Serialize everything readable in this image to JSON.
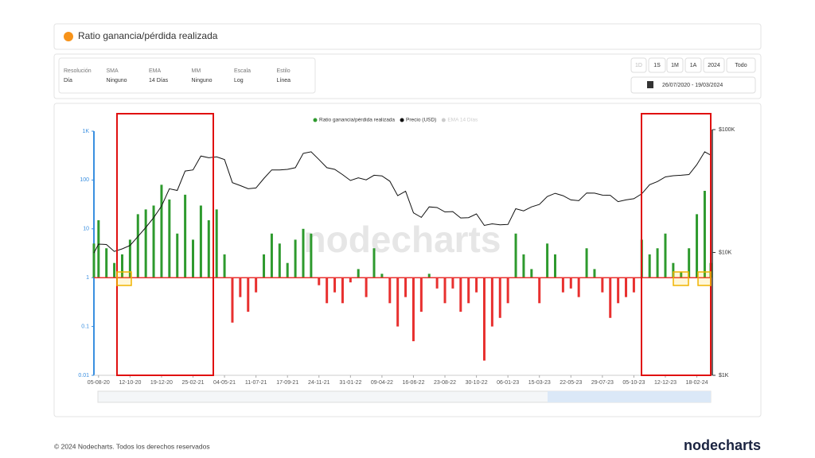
{
  "header": {
    "title": "Ratio ganancia/pérdida realizada"
  },
  "controls": [
    {
      "label": "Resolución",
      "value": "Día"
    },
    {
      "label": "SMA",
      "value": "Ninguno"
    },
    {
      "label": "EMA",
      "value": "14 Días"
    },
    {
      "label": "MM",
      "value": "Ninguno"
    },
    {
      "label": "Escala",
      "value": "Log"
    },
    {
      "label": "Estilo",
      "value": "Línea"
    }
  ],
  "range_buttons": [
    "1D",
    "1S",
    "1M",
    "1A",
    "2024",
    "Todo"
  ],
  "date_range": "26/07/2020 - 19/03/2024",
  "chart_data": {
    "type": "bar-line",
    "watermark": "nodecharts",
    "log": true,
    "threshold": 1,
    "x": [
      "26-07-20",
      "05-08-20",
      "22-08-20",
      "08-09-20",
      "25-09-20",
      "12-10-20",
      "29-10-20",
      "15-11-20",
      "02-12-20",
      "19-12-20",
      "05-01-21",
      "22-01-21",
      "08-02-21",
      "25-02-21",
      "14-03-21",
      "31-03-21",
      "17-04-21",
      "04-05-21",
      "21-05-21",
      "07-06-21",
      "24-06-21",
      "11-07-21",
      "28-07-21",
      "14-08-21",
      "31-08-21",
      "17-09-21",
      "04-10-21",
      "21-10-21",
      "07-11-21",
      "24-11-21",
      "11-12-21",
      "28-12-21",
      "14-01-22",
      "31-01-22",
      "17-02-22",
      "06-03-22",
      "23-03-22",
      "09-04-22",
      "26-04-22",
      "13-05-22",
      "30-05-22",
      "16-06-22",
      "03-07-22",
      "20-07-22",
      "06-08-22",
      "23-08-22",
      "09-09-22",
      "26-09-22",
      "13-10-22",
      "30-10-22",
      "16-11-22",
      "03-12-22",
      "20-12-22",
      "06-01-23",
      "23-01-23",
      "09-02-23",
      "26-02-23",
      "15-03-23",
      "01-04-23",
      "18-04-23",
      "05-05-23",
      "22-05-23",
      "08-06-23",
      "25-06-23",
      "12-07-23",
      "29-07-23",
      "15-08-23",
      "01-09-23",
      "18-09-23",
      "05-10-23",
      "22-10-23",
      "08-11-23",
      "25-11-23",
      "12-12-23",
      "29-12-23",
      "15-01-24",
      "01-02-24",
      "18-02-24",
      "06-03-24",
      "19-03-24"
    ],
    "series": [
      {
        "name": "Ratio ganancia/pérdida realizada",
        "color": "#2e9a2e",
        "negative_color": "#e8302f",
        "values": [
          5,
          15,
          4,
          2,
          3,
          6,
          20,
          25,
          30,
          80,
          40,
          8,
          50,
          6,
          30,
          15,
          25,
          3,
          0.12,
          0.4,
          0.2,
          0.5,
          3,
          8,
          5,
          2,
          6,
          10,
          8,
          0.7,
          0.3,
          0.5,
          0.3,
          0.8,
          1.5,
          0.4,
          4,
          1.2,
          0.3,
          0.1,
          0.4,
          0.05,
          0.2,
          1.2,
          0.6,
          0.3,
          0.6,
          0.2,
          0.3,
          0.5,
          0.02,
          0.1,
          0.15,
          0.3,
          8,
          3,
          1.5,
          0.3,
          5,
          3,
          0.5,
          0.6,
          0.4,
          4,
          1.5,
          0.5,
          0.15,
          0.3,
          0.4,
          0.5,
          6,
          3,
          4,
          8,
          2,
          1.3,
          4,
          20,
          60,
          2
        ]
      },
      {
        "name": "Precio (USD)",
        "color": "#111111",
        "axis": "y2",
        "values": [
          9900,
          11700,
          11600,
          10200,
          10700,
          11400,
          13500,
          16000,
          19200,
          23800,
          33000,
          32000,
          46000,
          47000,
          61000,
          59000,
          60000,
          57000,
          37000,
          35000,
          33000,
          33500,
          40000,
          47000,
          47000,
          47500,
          49000,
          64000,
          66000,
          57000,
          49000,
          47500,
          43000,
          38500,
          40500,
          39000,
          42500,
          42000,
          38000,
          29000,
          31500,
          21000,
          19300,
          23500,
          23200,
          21400,
          21500,
          19100,
          19200,
          20600,
          16600,
          17100,
          16800,
          16900,
          22700,
          21800,
          23500,
          24600,
          28500,
          30300,
          29000,
          26800,
          26400,
          30500,
          30400,
          29300,
          29200,
          25900,
          26800,
          27400,
          30000,
          35600,
          37800,
          41200,
          42100,
          42500,
          43100,
          51800,
          66000,
          62000
        ]
      }
    ],
    "legend_hidden": {
      "name": "EMA 14 Días",
      "color": "#cccccc"
    },
    "xlim": [
      "26-07-20",
      "19-03-24"
    ],
    "xticks": [
      "05-08-20",
      "12-10-20",
      "19-12-20",
      "25-02-21",
      "04-05-21",
      "11-07-21",
      "17-09-21",
      "24-11-21",
      "31-01-22",
      "09-04-22",
      "16-06-22",
      "23-08-22",
      "30-10-22",
      "06-01-23",
      "15-03-23",
      "22-05-23",
      "29-07-23",
      "05-10-23",
      "12-12-23",
      "18-02-24"
    ],
    "ylim": [
      0.01,
      1000
    ],
    "yticks": [
      {
        "value": 1000,
        "label": "1K"
      },
      100,
      10,
      1,
      0.1,
      0.01
    ],
    "y2lim": [
      1000,
      100000
    ],
    "y2ticks": [
      {
        "value": 100000,
        "label": "$100K"
      },
      {
        "value": 10000,
        "label": "$10K"
      },
      {
        "value": 1000,
        "label": "$1K"
      }
    ]
  },
  "footer": {
    "copyright": "© 2024 Nodecharts. Todos los derechos reservados",
    "logo": "nodecharts"
  }
}
